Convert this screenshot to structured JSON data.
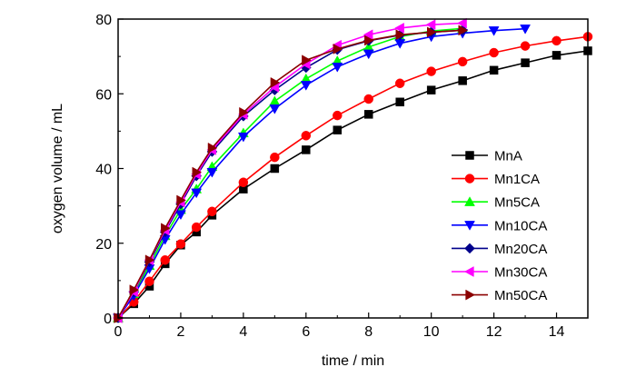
{
  "chart_data": {
    "type": "line",
    "title": "",
    "xlabel": "time / min",
    "ylabel": "oxygen volume / mL",
    "xlim": [
      0,
      15
    ],
    "ylim": [
      0,
      80
    ],
    "x_ticks": [
      "0",
      "2",
      "4",
      "6",
      "8",
      "10",
      "12",
      "14"
    ],
    "y_ticks": [
      "0",
      "20",
      "40",
      "60",
      "80"
    ],
    "grid": false,
    "legend_position": "center-right",
    "series": [
      {
        "name": "MnA",
        "color": "#000000",
        "marker": "square",
        "x": [
          0,
          0.5,
          1,
          1.5,
          2,
          2.5,
          3,
          4,
          5,
          6,
          7,
          8,
          9,
          10,
          11,
          12,
          13,
          14,
          15
        ],
        "y": [
          0,
          3.8,
          8.5,
          14.5,
          19.5,
          23,
          27.5,
          34.5,
          40,
          45,
          50.3,
          54.5,
          57.8,
          61,
          63.5,
          66.3,
          68.3,
          70.3,
          71.5
        ]
      },
      {
        "name": "Mn1CA",
        "color": "#ff0000",
        "marker": "circle",
        "x": [
          0,
          0.5,
          1,
          1.5,
          2,
          2.5,
          3,
          4,
          5,
          6,
          7,
          8,
          9,
          10,
          11,
          12,
          13,
          14,
          15
        ],
        "y": [
          0,
          4.3,
          9.8,
          15.5,
          19.8,
          24.3,
          28.5,
          36.3,
          43,
          48.8,
          54.2,
          58.6,
          62.8,
          66,
          68.6,
          71,
          72.8,
          74.2,
          75.3
        ]
      },
      {
        "name": "Mn5CA",
        "color": "#00ff00",
        "marker": "triangle-up",
        "x": [
          0,
          0.5,
          1,
          1.5,
          2,
          2.5,
          3,
          4,
          5,
          6,
          7,
          8,
          9,
          10,
          11
        ],
        "y": [
          0,
          6.5,
          14,
          22,
          29,
          34.5,
          40.5,
          49.5,
          58,
          64,
          68.8,
          72.5,
          75.3,
          76.8,
          77.5
        ]
      },
      {
        "name": "Mn10CA",
        "color": "#0000ff",
        "marker": "triangle-down",
        "x": [
          0,
          0.5,
          1,
          1.5,
          2,
          2.5,
          3,
          4,
          5,
          6,
          7,
          8,
          9,
          10,
          11,
          12,
          13
        ],
        "y": [
          0,
          6,
          13.2,
          21,
          27.7,
          33.5,
          39,
          48.5,
          56,
          62.3,
          67.2,
          70.7,
          73.5,
          75.3,
          76.2,
          76.9,
          77.4
        ]
      },
      {
        "name": "Mn20CA",
        "color": "#00008b",
        "marker": "diamond",
        "x": [
          0,
          0.5,
          1,
          1.5,
          2,
          2.5,
          3,
          4,
          5,
          6,
          7,
          8,
          9,
          10,
          11
        ],
        "y": [
          0,
          7,
          15,
          23,
          30.5,
          38,
          44.5,
          54,
          61,
          67,
          71.8,
          74.2,
          75.7,
          76.5,
          77
        ]
      },
      {
        "name": "Mn30CA",
        "color": "#ff00ff",
        "marker": "triangle-left",
        "x": [
          0,
          0.5,
          1,
          1.5,
          2,
          2.5,
          3,
          4,
          5,
          6,
          7,
          8,
          9,
          10,
          11
        ],
        "y": [
          0,
          7,
          15.5,
          23.5,
          31,
          38.5,
          45,
          54.5,
          61.8,
          68,
          73,
          75.8,
          77.6,
          78.5,
          78.9
        ]
      },
      {
        "name": "Mn50CA",
        "color": "#8b0000",
        "marker": "triangle-right",
        "x": [
          0,
          0.5,
          1,
          1.5,
          2,
          2.5,
          3,
          4,
          5,
          6,
          7,
          8,
          9,
          10,
          11
        ],
        "y": [
          0,
          7.5,
          15.5,
          24,
          31.5,
          39,
          45.5,
          55,
          63,
          69,
          72,
          74.3,
          75.8,
          76.5,
          77
        ]
      }
    ]
  }
}
